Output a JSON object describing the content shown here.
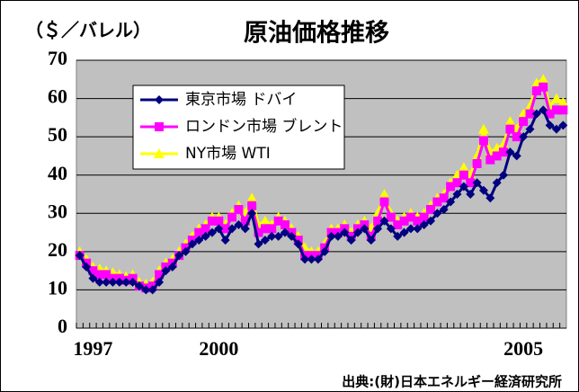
{
  "chart_data": {
    "type": "line",
    "title": "原油価格推移",
    "y_label": "（＄／バレル）",
    "source": "出典:(財)日本エネルギー経済研究所",
    "categories": [
      null,
      null,
      "1997",
      null,
      null,
      null,
      null,
      null,
      null,
      null,
      null,
      null,
      null,
      null,
      null,
      null,
      null,
      null,
      null,
      null,
      null,
      "2000",
      null,
      null,
      null,
      null,
      null,
      null,
      null,
      null,
      null,
      null,
      null,
      null,
      null,
      null,
      null,
      null,
      null,
      null,
      null,
      null,
      null,
      null,
      null,
      null,
      null,
      null,
      null,
      null,
      null,
      null,
      null,
      null,
      null,
      null,
      null,
      null,
      null,
      null,
      null,
      null,
      null,
      null,
      null,
      null,
      null,
      "2005",
      null,
      null,
      null,
      null,
      null,
      null
    ],
    "series": [
      {
        "name": "東京市場  ドバイ",
        "color": "#000080",
        "marker": "diamond",
        "values": [
          19,
          16,
          13,
          12,
          12,
          12,
          12,
          12,
          12,
          11,
          10,
          10,
          12,
          15,
          16,
          19,
          20,
          22,
          23,
          24,
          25,
          26,
          23,
          26,
          27,
          26,
          30,
          22,
          23,
          24,
          24,
          25,
          24,
          22,
          18,
          18,
          18,
          20,
          24,
          24,
          25,
          23,
          25,
          26,
          23,
          26,
          28,
          26,
          24,
          25,
          26,
          26,
          27,
          28,
          30,
          31,
          33,
          35,
          37,
          35,
          38,
          36,
          34,
          38,
          40,
          46,
          45,
          50,
          52,
          56,
          57,
          53,
          52,
          53
        ]
      },
      {
        "name": "ロンドン市場  ブレント",
        "color": "#ff00ff",
        "marker": "square",
        "values": [
          19,
          17,
          15,
          14,
          14,
          13,
          13,
          12.5,
          13,
          11,
          10.5,
          11,
          14,
          16,
          17,
          19,
          21,
          23,
          25,
          26,
          28,
          28,
          26,
          29,
          31,
          28,
          32,
          25,
          26,
          26,
          28,
          27,
          25,
          23,
          19,
          19,
          19,
          21,
          25,
          25,
          26,
          24,
          26,
          27,
          24,
          28,
          33,
          29,
          27,
          28,
          29,
          28,
          29,
          31,
          33,
          34,
          37,
          38,
          40,
          38,
          43,
          49,
          44,
          45,
          46,
          52,
          50,
          54,
          56,
          62,
          63,
          56,
          57,
          57
        ]
      },
      {
        "name": "NY市場  WTI",
        "color": "#ffff00",
        "marker": "triangle",
        "values": [
          20,
          18,
          16,
          15.5,
          15,
          14.5,
          14,
          13.5,
          14,
          12,
          11.5,
          12,
          15,
          17,
          18,
          20,
          22,
          24,
          26,
          27,
          29,
          29,
          27,
          30,
          32,
          30,
          34,
          27,
          28,
          27,
          29,
          28,
          26,
          24,
          21,
          20,
          20,
          22,
          26,
          26,
          27,
          25,
          27,
          28,
          26,
          30,
          35,
          30,
          28,
          29,
          30,
          29,
          30,
          32,
          34,
          35,
          38,
          40,
          42,
          40,
          45,
          52,
          46,
          47,
          48,
          54,
          52,
          56,
          58,
          64,
          65,
          58,
          60,
          59
        ]
      }
    ],
    "ylim": [
      0,
      70
    ],
    "yticks": [
      0,
      10,
      20,
      30,
      40,
      50,
      60,
      70
    ],
    "grid": true,
    "plot_background": "#c0c0c0"
  }
}
